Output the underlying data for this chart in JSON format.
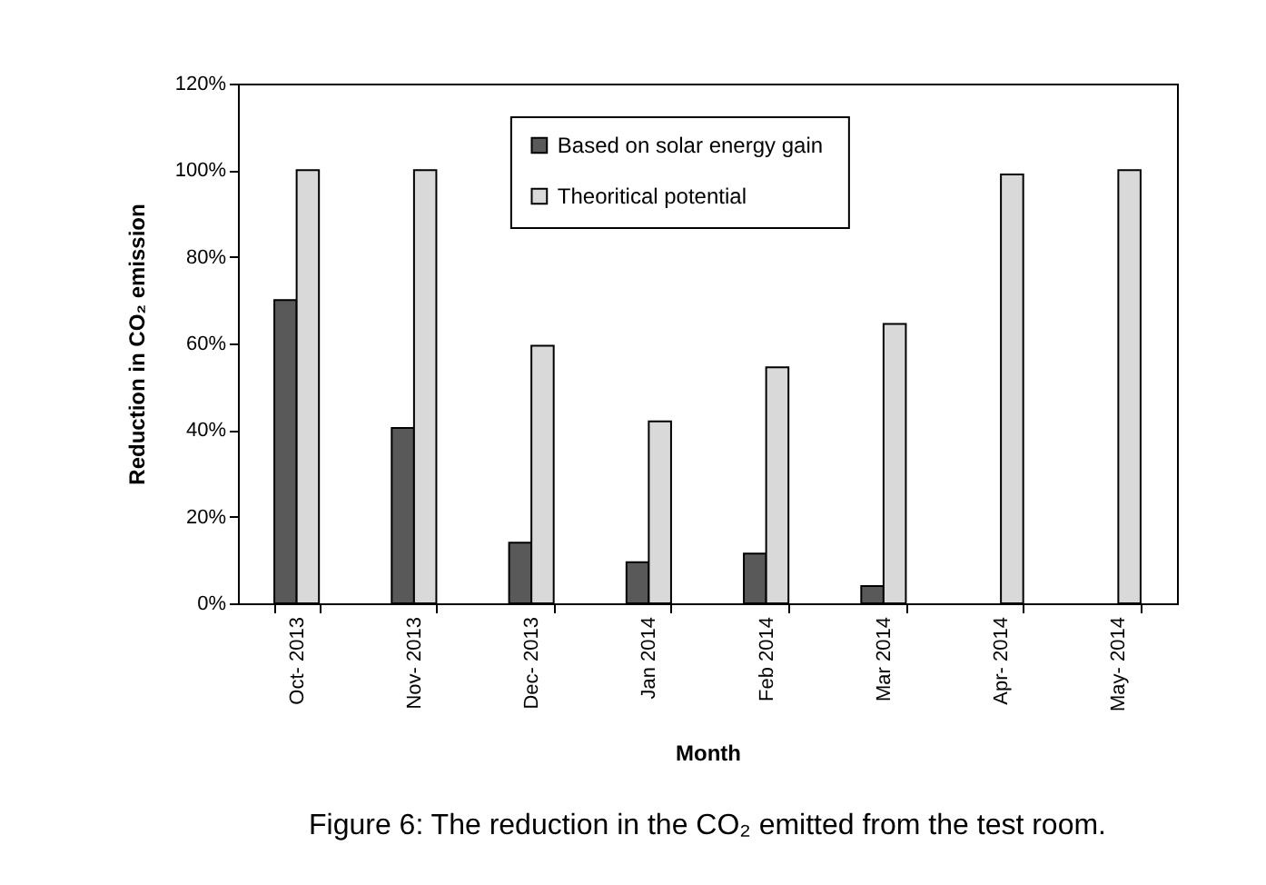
{
  "chart_data": {
    "type": "bar",
    "categories": [
      "Oct- 2013",
      "Nov- 2013",
      "Dec- 2013",
      "Jan 2014",
      "Feb 2014",
      "Mar 2014",
      "Apr- 2014",
      "May- 2014"
    ],
    "series": [
      {
        "name": "Based on solar  energy gain",
        "color": "#595959",
        "values": [
          70,
          40.5,
          14,
          9.5,
          11.5,
          4,
          null,
          null
        ]
      },
      {
        "name": "Theoritical potential",
        "color": "#d9d9d9",
        "values": [
          100,
          100,
          59.5,
          42,
          54.5,
          64.5,
          99,
          100
        ]
      }
    ],
    "xlabel": "Month",
    "ylabel": "Reduction in CO₂ emission",
    "ylim": [
      0,
      120
    ],
    "yticks": [
      {
        "value": 0,
        "label": "0%"
      },
      {
        "value": 20,
        "label": "20%"
      },
      {
        "value": 40,
        "label": "40%"
      },
      {
        "value": 60,
        "label": "60%"
      },
      {
        "value": 80,
        "label": "80%"
      },
      {
        "value": 100,
        "label": "100%"
      },
      {
        "value": 120,
        "label": "120%"
      }
    ],
    "grid": false,
    "legend": "top",
    "annotations": [
      "Figure 6: The reduction in the CO₂ emitted from the test room."
    ]
  }
}
